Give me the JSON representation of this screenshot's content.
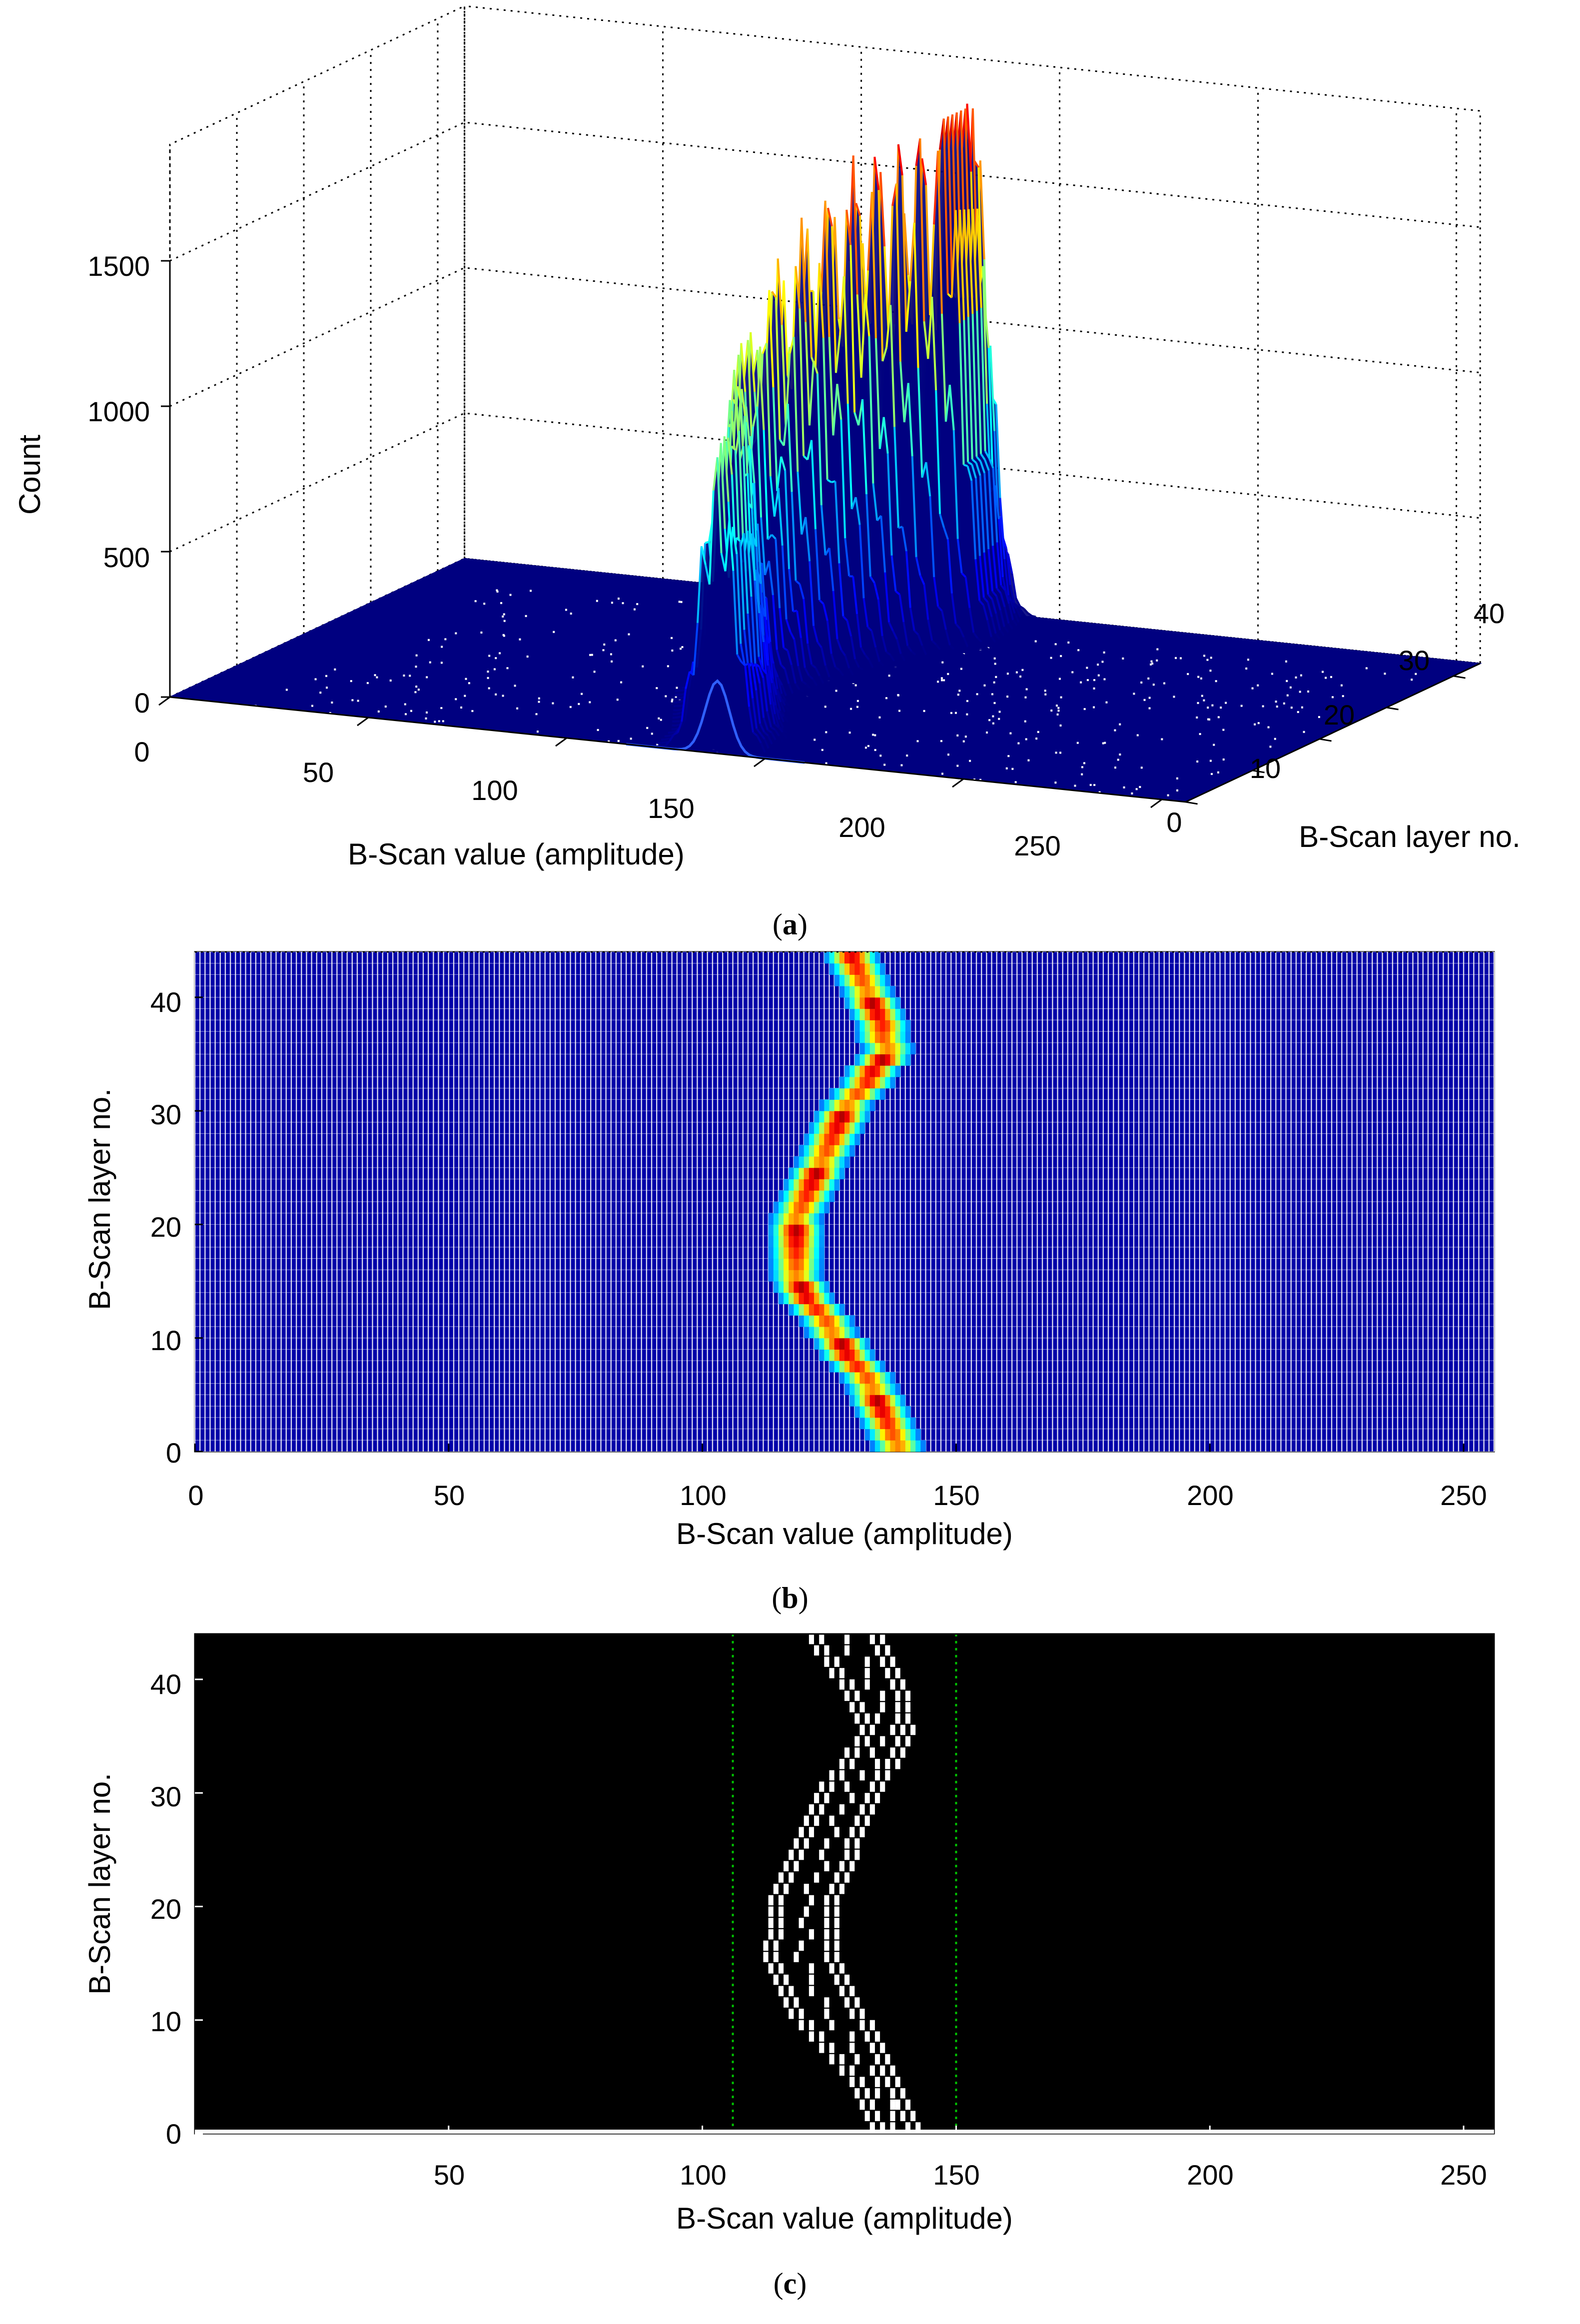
{
  "panels": {
    "a": {
      "caption_letter": "a",
      "zlabel": "Count",
      "xlabel": "B-Scan value (amplitude)",
      "ylabel": "B-Scan layer no.",
      "z_ticks": [
        "0",
        "500",
        "1000",
        "1500"
      ],
      "x_ticks": [
        "0",
        "50",
        "100",
        "150",
        "200",
        "250"
      ],
      "y_ticks": [
        "0",
        "10",
        "20",
        "30",
        "40"
      ]
    },
    "b": {
      "caption_letter": "b",
      "xlabel": "B-Scan value (amplitude)",
      "ylabel": "B-Scan layer no.",
      "x_ticks": [
        "0",
        "50",
        "100",
        "150",
        "200",
        "250"
      ],
      "y_ticks": [
        "0",
        "10",
        "20",
        "30",
        "40"
      ]
    },
    "c": {
      "caption_letter": "c",
      "xlabel": "B-Scan value (amplitude)",
      "ylabel": "B-Scan layer no.",
      "x_ticks": [
        "50",
        "100",
        "150",
        "200",
        "250"
      ],
      "y_ticks": [
        "0",
        "10",
        "20",
        "30",
        "40"
      ]
    }
  },
  "colors": {
    "surface_base": "#000080",
    "mesh_grid": "#ffffff",
    "dotted_grid": "#000000",
    "panel_c_background": "#000000",
    "panel_c_marks": "#ffffff",
    "panel_c_limits": "#00c000"
  },
  "chart_data": [
    {
      "type": "surface",
      "title": "",
      "xlabel": "B-Scan value (amplitude)",
      "ylabel": "B-Scan layer no.",
      "zlabel": "Count",
      "xlim": [
        0,
        256
      ],
      "ylim": [
        0,
        44
      ],
      "zlim": [
        0,
        1500
      ],
      "grid": true,
      "colormap": "jet",
      "series": [
        {
          "layer": [
            0,
            5,
            10,
            15,
            20,
            25,
            30,
            35,
            40,
            44
          ],
          "peak_amplitude": [
            138,
            134,
            126,
            118,
            118,
            122,
            127,
            136,
            133,
            128
          ],
          "peak_count": [
            1050,
            1100,
            1150,
            1200,
            1450,
            1650,
            1800,
            1900,
            1850,
            1750
          ]
        }
      ]
    },
    {
      "type": "heatmap",
      "title": "",
      "xlabel": "B-Scan value (amplitude)",
      "ylabel": "B-Scan layer no.",
      "xlim": [
        0,
        256
      ],
      "ylim": [
        0,
        44
      ],
      "colormap": "jet",
      "series": [
        {
          "layer": [
            0,
            5,
            10,
            15,
            20,
            25,
            30,
            35,
            40,
            44
          ],
          "peak_amplitude": [
            138,
            134,
            126,
            118,
            118,
            122,
            127,
            136,
            133,
            128
          ]
        }
      ]
    },
    {
      "type": "scatter",
      "title": "",
      "xlabel": "B-Scan value (amplitude)",
      "ylabel": "B-Scan layer no.",
      "xlim": [
        0,
        256
      ],
      "ylim": [
        0,
        44
      ],
      "vertical_lines": [
        106,
        150
      ],
      "series": [
        {
          "layer": [
            0,
            5,
            10,
            15,
            20,
            25,
            30,
            35,
            40,
            44
          ],
          "left_edge": [
            134,
            128,
            118,
            112,
            113,
            117,
            122,
            131,
            126,
            120
          ],
          "right_edge": [
            142,
            138,
            132,
            126,
            126,
            130,
            134,
            141,
            139,
            134
          ]
        }
      ]
    }
  ]
}
